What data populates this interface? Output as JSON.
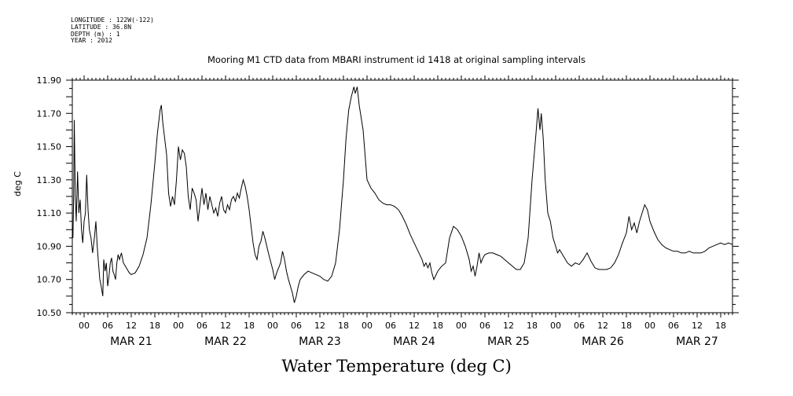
{
  "meta": {
    "longitude": "LONGITUDE : 122W(-122)",
    "latitude": "LATITUDE : 36.8N",
    "depth": "DEPTH (m) : 1",
    "year": "YEAR : 2012"
  },
  "chart_data": {
    "type": "line",
    "title": "Mooring M1 CTD data from MBARI instrument id 1418 at original sampling intervals",
    "xlabel": "Water Temperature (deg C)",
    "ylabel": "deg C",
    "ylim": [
      10.5,
      11.9
    ],
    "y_ticks": [
      "10.50",
      "10.70",
      "10.90",
      "11.10",
      "11.30",
      "11.50",
      "11.70",
      "11.90"
    ],
    "xlim": [
      "2012-03-20T21:00",
      "2012-03-27T21:00"
    ],
    "x_hour_ticks": [
      "00",
      "06",
      "12",
      "18",
      "00",
      "06",
      "12",
      "18",
      "00",
      "06",
      "12",
      "18",
      "00",
      "06",
      "12",
      "18",
      "00",
      "06",
      "12",
      "18",
      "00",
      "06",
      "12",
      "18",
      "00",
      "06",
      "12",
      "18"
    ],
    "x_date_labels": [
      "MAR 21",
      "MAR 22",
      "MAR 23",
      "MAR 24",
      "MAR 25",
      "MAR 26",
      "MAR 27"
    ],
    "grid": false,
    "series": [
      {
        "color": "#000000",
        "points": [
          [
            "2012-03-20T21:00",
            10.98
          ],
          [
            "2012-03-20T21:10",
            10.95
          ],
          [
            "2012-03-20T21:20",
            11.2
          ],
          [
            "2012-03-20T21:30",
            11.66
          ],
          [
            "2012-03-20T21:45",
            11.2
          ],
          [
            "2012-03-20T22:00",
            11.05
          ],
          [
            "2012-03-20T22:20",
            11.35
          ],
          [
            "2012-03-20T22:40",
            11.1
          ],
          [
            "2012-03-20T23:00",
            11.18
          ],
          [
            "2012-03-20T23:20",
            11.0
          ],
          [
            "2012-03-20T23:40",
            10.92
          ],
          [
            "2012-03-21T00:00",
            11.05
          ],
          [
            "2012-03-21T00:20",
            11.1
          ],
          [
            "2012-03-21T00:40",
            11.33
          ],
          [
            "2012-03-21T01:00",
            11.12
          ],
          [
            "2012-03-21T01:20",
            11.0
          ],
          [
            "2012-03-21T01:45",
            10.95
          ],
          [
            "2012-03-21T02:10",
            10.86
          ],
          [
            "2012-03-21T02:40",
            10.96
          ],
          [
            "2012-03-21T03:00",
            11.05
          ],
          [
            "2012-03-21T03:20",
            10.9
          ],
          [
            "2012-03-21T03:40",
            10.8
          ],
          [
            "2012-03-21T04:00",
            10.7
          ],
          [
            "2012-03-21T04:20",
            10.66
          ],
          [
            "2012-03-21T04:45",
            10.6
          ],
          [
            "2012-03-21T05:00",
            10.82
          ],
          [
            "2012-03-21T05:20",
            10.75
          ],
          [
            "2012-03-21T05:40",
            10.8
          ],
          [
            "2012-03-21T06:00",
            10.66
          ],
          [
            "2012-03-21T06:20",
            10.72
          ],
          [
            "2012-03-21T06:40",
            10.8
          ],
          [
            "2012-03-21T07:00",
            10.83
          ],
          [
            "2012-03-21T07:20",
            10.75
          ],
          [
            "2012-03-21T07:40",
            10.73
          ],
          [
            "2012-03-21T08:00",
            10.7
          ],
          [
            "2012-03-21T08:20",
            10.8
          ],
          [
            "2012-03-21T08:40",
            10.85
          ],
          [
            "2012-03-21T09:00",
            10.82
          ],
          [
            "2012-03-21T09:30",
            10.86
          ],
          [
            "2012-03-21T10:00",
            10.8
          ],
          [
            "2012-03-21T10:30",
            10.78
          ],
          [
            "2012-03-21T11:00",
            10.76
          ],
          [
            "2012-03-21T11:30",
            10.74
          ],
          [
            "2012-03-21T12:00",
            10.73
          ],
          [
            "2012-03-21T13:00",
            10.74
          ],
          [
            "2012-03-21T14:00",
            10.78
          ],
          [
            "2012-03-21T15:00",
            10.85
          ],
          [
            "2012-03-21T16:00",
            10.95
          ],
          [
            "2012-03-21T17:00",
            11.15
          ],
          [
            "2012-03-21T18:00",
            11.4
          ],
          [
            "2012-03-21T18:40",
            11.58
          ],
          [
            "2012-03-21T19:20",
            11.72
          ],
          [
            "2012-03-21T19:40",
            11.75
          ],
          [
            "2012-03-21T20:00",
            11.65
          ],
          [
            "2012-03-21T20:30",
            11.55
          ],
          [
            "2012-03-21T21:00",
            11.45
          ],
          [
            "2012-03-21T21:30",
            11.22
          ],
          [
            "2012-03-21T22:00",
            11.14
          ],
          [
            "2012-03-21T22:30",
            11.2
          ],
          [
            "2012-03-21T23:00",
            11.15
          ],
          [
            "2012-03-21T23:30",
            11.3
          ],
          [
            "2012-03-22T00:00",
            11.5
          ],
          [
            "2012-03-22T00:30",
            11.42
          ],
          [
            "2012-03-22T01:00",
            11.48
          ],
          [
            "2012-03-22T01:30",
            11.46
          ],
          [
            "2012-03-22T02:00",
            11.38
          ],
          [
            "2012-03-22T02:30",
            11.2
          ],
          [
            "2012-03-22T03:00",
            11.12
          ],
          [
            "2012-03-22T03:30",
            11.25
          ],
          [
            "2012-03-22T04:00",
            11.22
          ],
          [
            "2012-03-22T04:30",
            11.18
          ],
          [
            "2012-03-22T05:00",
            11.05
          ],
          [
            "2012-03-22T05:30",
            11.15
          ],
          [
            "2012-03-22T06:00",
            11.25
          ],
          [
            "2012-03-22T06:30",
            11.15
          ],
          [
            "2012-03-22T07:00",
            11.22
          ],
          [
            "2012-03-22T07:30",
            11.12
          ],
          [
            "2012-03-22T08:00",
            11.2
          ],
          [
            "2012-03-22T08:30",
            11.15
          ],
          [
            "2012-03-22T09:00",
            11.1
          ],
          [
            "2012-03-22T09:30",
            11.13
          ],
          [
            "2012-03-22T10:00",
            11.08
          ],
          [
            "2012-03-22T10:30",
            11.16
          ],
          [
            "2012-03-22T11:00",
            11.2
          ],
          [
            "2012-03-22T11:30",
            11.12
          ],
          [
            "2012-03-22T12:00",
            11.1
          ],
          [
            "2012-03-22T12:30",
            11.15
          ],
          [
            "2012-03-22T13:00",
            11.12
          ],
          [
            "2012-03-22T13:30",
            11.18
          ],
          [
            "2012-03-22T14:00",
            11.2
          ],
          [
            "2012-03-22T14:30",
            11.17
          ],
          [
            "2012-03-22T15:00",
            11.22
          ],
          [
            "2012-03-22T15:30",
            11.19
          ],
          [
            "2012-03-22T16:00",
            11.25
          ],
          [
            "2012-03-22T16:30",
            11.3
          ],
          [
            "2012-03-22T17:00",
            11.26
          ],
          [
            "2012-03-22T17:30",
            11.2
          ],
          [
            "2012-03-22T18:00",
            11.12
          ],
          [
            "2012-03-22T18:30",
            11.02
          ],
          [
            "2012-03-22T19:00",
            10.92
          ],
          [
            "2012-03-22T19:30",
            10.85
          ],
          [
            "2012-03-22T20:00",
            10.82
          ],
          [
            "2012-03-22T20:30",
            10.9
          ],
          [
            "2012-03-22T21:00",
            10.93
          ],
          [
            "2012-03-22T21:30",
            10.99
          ],
          [
            "2012-03-22T22:00",
            10.95
          ],
          [
            "2012-03-22T23:00",
            10.85
          ],
          [
            "2012-03-23T00:00",
            10.76
          ],
          [
            "2012-03-23T00:30",
            10.7
          ],
          [
            "2012-03-23T01:00",
            10.74
          ],
          [
            "2012-03-23T02:00",
            10.8
          ],
          [
            "2012-03-23T02:30",
            10.87
          ],
          [
            "2012-03-23T03:00",
            10.82
          ],
          [
            "2012-03-23T03:30",
            10.75
          ],
          [
            "2012-03-23T04:00",
            10.7
          ],
          [
            "2012-03-23T05:00",
            10.62
          ],
          [
            "2012-03-23T05:30",
            10.56
          ],
          [
            "2012-03-23T06:00",
            10.6
          ],
          [
            "2012-03-23T06:30",
            10.66
          ],
          [
            "2012-03-23T07:00",
            10.7
          ],
          [
            "2012-03-23T08:00",
            10.73
          ],
          [
            "2012-03-23T09:00",
            10.75
          ],
          [
            "2012-03-23T10:00",
            10.74
          ],
          [
            "2012-03-23T11:00",
            10.73
          ],
          [
            "2012-03-23T12:00",
            10.72
          ],
          [
            "2012-03-23T13:00",
            10.7
          ],
          [
            "2012-03-23T14:00",
            10.69
          ],
          [
            "2012-03-23T15:00",
            10.72
          ],
          [
            "2012-03-23T16:00",
            10.8
          ],
          [
            "2012-03-23T17:00",
            11.0
          ],
          [
            "2012-03-23T18:00",
            11.3
          ],
          [
            "2012-03-23T18:40",
            11.55
          ],
          [
            "2012-03-23T19:20",
            11.72
          ],
          [
            "2012-03-23T20:00",
            11.8
          ],
          [
            "2012-03-23T20:40",
            11.86
          ],
          [
            "2012-03-23T21:00",
            11.82
          ],
          [
            "2012-03-23T21:30",
            11.86
          ],
          [
            "2012-03-23T22:00",
            11.75
          ],
          [
            "2012-03-23T23:00",
            11.6
          ],
          [
            "2012-03-24T00:00",
            11.3
          ],
          [
            "2012-03-24T01:00",
            11.25
          ],
          [
            "2012-03-24T02:00",
            11.22
          ],
          [
            "2012-03-24T03:00",
            11.18
          ],
          [
            "2012-03-24T04:00",
            11.16
          ],
          [
            "2012-03-24T05:00",
            11.15
          ],
          [
            "2012-03-24T06:00",
            11.15
          ],
          [
            "2012-03-24T07:00",
            11.14
          ],
          [
            "2012-03-24T08:00",
            11.12
          ],
          [
            "2012-03-24T09:00",
            11.08
          ],
          [
            "2012-03-24T10:00",
            11.03
          ],
          [
            "2012-03-24T11:00",
            10.97
          ],
          [
            "2012-03-24T12:00",
            10.92
          ],
          [
            "2012-03-24T13:00",
            10.87
          ],
          [
            "2012-03-24T14:00",
            10.82
          ],
          [
            "2012-03-24T14:30",
            10.78
          ],
          [
            "2012-03-24T15:00",
            10.8
          ],
          [
            "2012-03-24T15:30",
            10.77
          ],
          [
            "2012-03-24T16:00",
            10.8
          ],
          [
            "2012-03-24T16:30",
            10.74
          ],
          [
            "2012-03-24T17:00",
            10.7
          ],
          [
            "2012-03-24T18:00",
            10.75
          ],
          [
            "2012-03-24T19:00",
            10.78
          ],
          [
            "2012-03-24T20:00",
            10.8
          ],
          [
            "2012-03-24T21:00",
            10.95
          ],
          [
            "2012-03-24T22:00",
            11.02
          ],
          [
            "2012-03-24T23:00",
            11.0
          ],
          [
            "2012-03-25T00:00",
            10.96
          ],
          [
            "2012-03-25T01:00",
            10.9
          ],
          [
            "2012-03-25T02:00",
            10.82
          ],
          [
            "2012-03-25T02:30",
            10.75
          ],
          [
            "2012-03-25T03:00",
            10.78
          ],
          [
            "2012-03-25T03:30",
            10.72
          ],
          [
            "2012-03-25T04:00",
            10.78
          ],
          [
            "2012-03-25T04:30",
            10.86
          ],
          [
            "2012-03-25T05:00",
            10.8
          ],
          [
            "2012-03-25T05:30",
            10.83
          ],
          [
            "2012-03-25T06:00",
            10.85
          ],
          [
            "2012-03-25T07:00",
            10.86
          ],
          [
            "2012-03-25T08:00",
            10.86
          ],
          [
            "2012-03-25T09:00",
            10.85
          ],
          [
            "2012-03-25T10:00",
            10.84
          ],
          [
            "2012-03-25T11:00",
            10.82
          ],
          [
            "2012-03-25T12:00",
            10.8
          ],
          [
            "2012-03-25T13:00",
            10.78
          ],
          [
            "2012-03-25T14:00",
            10.76
          ],
          [
            "2012-03-25T15:00",
            10.76
          ],
          [
            "2012-03-25T16:00",
            10.8
          ],
          [
            "2012-03-25T17:00",
            10.95
          ],
          [
            "2012-03-25T18:00",
            11.3
          ],
          [
            "2012-03-25T19:00",
            11.58
          ],
          [
            "2012-03-25T19:30",
            11.73
          ],
          [
            "2012-03-25T20:00",
            11.6
          ],
          [
            "2012-03-25T20:20",
            11.7
          ],
          [
            "2012-03-25T20:50",
            11.55
          ],
          [
            "2012-03-25T21:20",
            11.3
          ],
          [
            "2012-03-25T22:00",
            11.1
          ],
          [
            "2012-03-25T22:40",
            11.05
          ],
          [
            "2012-03-25T23:20",
            10.95
          ],
          [
            "2012-03-26T00:00",
            10.9
          ],
          [
            "2012-03-26T00:30",
            10.86
          ],
          [
            "2012-03-26T01:00",
            10.88
          ],
          [
            "2012-03-26T02:00",
            10.84
          ],
          [
            "2012-03-26T03:00",
            10.8
          ],
          [
            "2012-03-26T04:00",
            10.78
          ],
          [
            "2012-03-26T05:00",
            10.8
          ],
          [
            "2012-03-26T06:00",
            10.79
          ],
          [
            "2012-03-26T07:00",
            10.82
          ],
          [
            "2012-03-26T08:00",
            10.86
          ],
          [
            "2012-03-26T09:00",
            10.81
          ],
          [
            "2012-03-26T10:00",
            10.77
          ],
          [
            "2012-03-26T11:00",
            10.76
          ],
          [
            "2012-03-26T12:00",
            10.76
          ],
          [
            "2012-03-26T13:00",
            10.76
          ],
          [
            "2012-03-26T14:00",
            10.77
          ],
          [
            "2012-03-26T15:00",
            10.8
          ],
          [
            "2012-03-26T16:00",
            10.85
          ],
          [
            "2012-03-26T17:00",
            10.92
          ],
          [
            "2012-03-26T18:00",
            10.98
          ],
          [
            "2012-03-26T18:40",
            11.08
          ],
          [
            "2012-03-26T19:20",
            11.0
          ],
          [
            "2012-03-26T20:00",
            11.04
          ],
          [
            "2012-03-26T20:40",
            10.98
          ],
          [
            "2012-03-26T21:20",
            11.05
          ],
          [
            "2012-03-26T22:00",
            11.1
          ],
          [
            "2012-03-26T22:40",
            11.15
          ],
          [
            "2012-03-26T23:20",
            11.12
          ],
          [
            "2012-03-27T00:00",
            11.05
          ],
          [
            "2012-03-27T01:00",
            10.99
          ],
          [
            "2012-03-27T02:00",
            10.94
          ],
          [
            "2012-03-27T03:00",
            10.91
          ],
          [
            "2012-03-27T04:00",
            10.89
          ],
          [
            "2012-03-27T05:00",
            10.88
          ],
          [
            "2012-03-27T06:00",
            10.87
          ],
          [
            "2012-03-27T07:00",
            10.87
          ],
          [
            "2012-03-27T08:00",
            10.86
          ],
          [
            "2012-03-27T09:00",
            10.86
          ],
          [
            "2012-03-27T10:00",
            10.87
          ],
          [
            "2012-03-27T11:00",
            10.86
          ],
          [
            "2012-03-27T12:00",
            10.86
          ],
          [
            "2012-03-27T13:00",
            10.86
          ],
          [
            "2012-03-27T14:00",
            10.87
          ],
          [
            "2012-03-27T15:00",
            10.89
          ],
          [
            "2012-03-27T16:00",
            10.9
          ],
          [
            "2012-03-27T17:00",
            10.91
          ],
          [
            "2012-03-27T18:00",
            10.92
          ],
          [
            "2012-03-27T19:00",
            10.91
          ],
          [
            "2012-03-27T20:00",
            10.92
          ],
          [
            "2012-03-27T21:00",
            10.91
          ]
        ]
      }
    ]
  }
}
